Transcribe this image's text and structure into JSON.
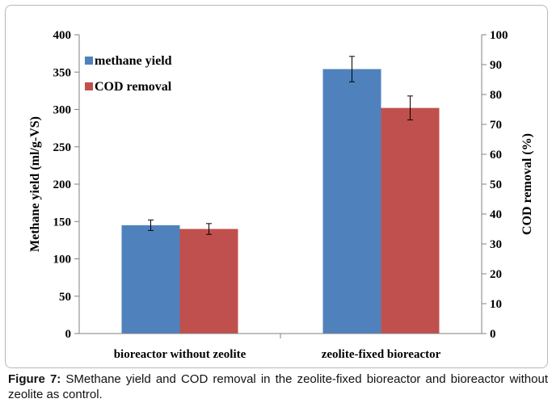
{
  "chart_data": {
    "type": "bar",
    "categories": [
      "bioreactor without  zeolite",
      "zeolite-fixed bioreactor"
    ],
    "series": [
      {
        "name": "methane yield",
        "axis": "left",
        "color": "#4f81bd",
        "values": [
          145,
          354
        ],
        "errors": [
          7,
          17
        ]
      },
      {
        "name": "COD removal",
        "axis": "right",
        "color": "#c0504d",
        "values": [
          35,
          75.5
        ],
        "errors": [
          1.8,
          4
        ]
      }
    ],
    "ylabel": "Methane yield (ml/g-VS)",
    "y2label": "COD removal (%)",
    "ylim": [
      0,
      400
    ],
    "y2lim": [
      0,
      100
    ],
    "yticks": [
      "0",
      "50",
      "100",
      "150",
      "200",
      "250",
      "300",
      "350",
      "400"
    ],
    "y2ticks": [
      "0",
      "10",
      "20",
      "30",
      "40",
      "50",
      "60",
      "70",
      "80",
      "90",
      "100"
    ],
    "legend_position": "top-left",
    "grid": false
  },
  "caption": {
    "label": "Figure 7:",
    "text": " SMethane yield and COD removal in the zeolite-fixed bioreactor and bioreactor without zeolite as control."
  }
}
